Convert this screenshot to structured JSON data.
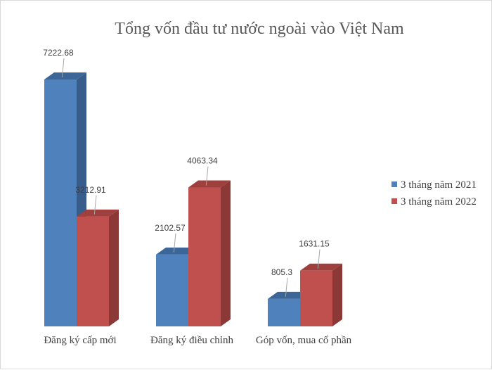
{
  "chart_data": {
    "type": "bar",
    "title": "Tổng vốn đầu tư nước ngoài vào Việt Nam",
    "categories": [
      "Đăng ký cấp mới",
      "Đăng ký điều chỉnh",
      "Góp vốn, mua cổ phần"
    ],
    "series": [
      {
        "name": "3 tháng năm 2021",
        "values": [
          7222.68,
          2102.57,
          805.3
        ],
        "color": "#4f81bd",
        "side": "#385d8a",
        "top": "#3c6598"
      },
      {
        "name": "3 tháng năm 2022",
        "values": [
          3212.91,
          4063.34,
          1631.15
        ],
        "color": "#c0504d",
        "side": "#8c3836",
        "top": "#9e403d"
      }
    ],
    "legend_position": "right",
    "grid": false,
    "ylim": [
      0,
      7222.68
    ],
    "three_d": true
  }
}
